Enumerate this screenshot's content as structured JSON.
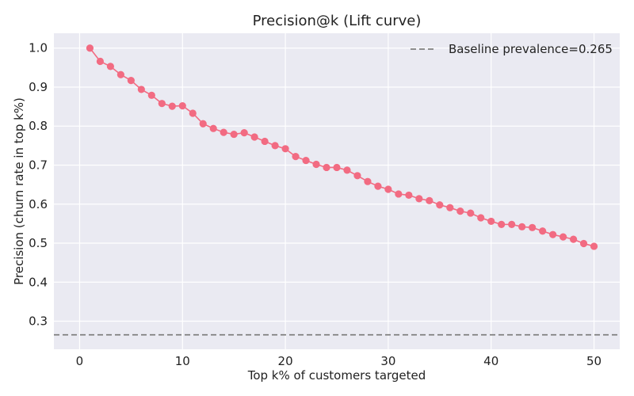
{
  "chart_data": {
    "type": "line",
    "title": "Precision@k (Lift curve)",
    "xlabel": "Top k% of customers targeted",
    "ylabel": "Precision (churn rate in top k%)",
    "xlim": [
      -2.5,
      52.5
    ],
    "ylim": [
      0.228,
      1.038
    ],
    "xticks": [
      0,
      10,
      20,
      30,
      40,
      50
    ],
    "yticks": [
      0.3,
      0.4,
      0.5,
      0.6,
      0.7,
      0.8,
      0.9,
      1.0
    ],
    "grid": true,
    "legend_position": "top-right",
    "series": [
      {
        "x": [
          1,
          2,
          3,
          4,
          5,
          6,
          7,
          8,
          9,
          10,
          11,
          12,
          13,
          14,
          15,
          16,
          17,
          18,
          19,
          20,
          21,
          22,
          23,
          24,
          25,
          26,
          27,
          28,
          29,
          30,
          31,
          32,
          33,
          34,
          35,
          36,
          37,
          38,
          39,
          40,
          41,
          42,
          43,
          44,
          45,
          46,
          47,
          48,
          49,
          50
        ],
        "values": [
          1.0,
          0.966,
          0.953,
          0.932,
          0.917,
          0.894,
          0.879,
          0.858,
          0.851,
          0.852,
          0.833,
          0.806,
          0.794,
          0.784,
          0.779,
          0.783,
          0.772,
          0.761,
          0.75,
          0.742,
          0.722,
          0.712,
          0.702,
          0.694,
          0.694,
          0.687,
          0.673,
          0.658,
          0.646,
          0.638,
          0.626,
          0.623,
          0.614,
          0.609,
          0.598,
          0.591,
          0.582,
          0.577,
          0.565,
          0.556,
          0.548,
          0.548,
          0.542,
          0.54,
          0.531,
          0.522,
          0.516,
          0.51,
          0.499,
          0.492
        ],
        "color": "#f26b82"
      }
    ],
    "baseline": {
      "name": "Baseline prevalence=0.265",
      "value": 0.265,
      "color": "#7f7f7f",
      "style": "dashed"
    }
  },
  "colors": {
    "plot_background": "#eaeaf2",
    "grid": "#ffffff",
    "page_background": "#ffffff"
  }
}
